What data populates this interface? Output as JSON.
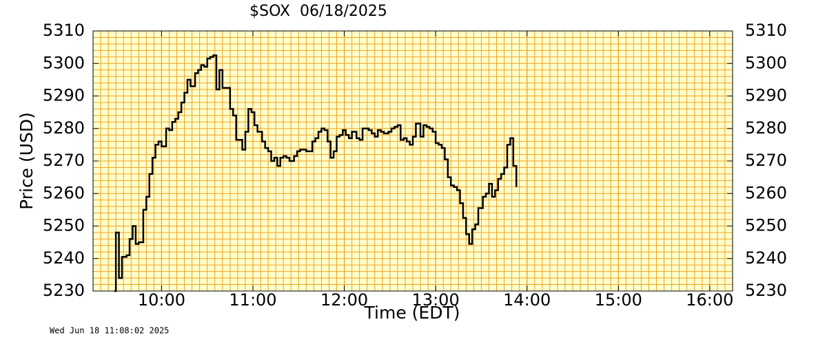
{
  "chart_data": {
    "type": "line",
    "step": "post",
    "title": "$SOX  06/18/2025",
    "x_label": "Time (EDT)",
    "y_label": "Price (USD)",
    "timestamp": "Wed Jun 18 11:08:02 2025",
    "xlim": [
      555,
      975
    ],
    "xticks": [
      {
        "value": 600,
        "label": "10:00"
      },
      {
        "value": 660,
        "label": "11:00"
      },
      {
        "value": 720,
        "label": "12:00"
      },
      {
        "value": 780,
        "label": "13:00"
      },
      {
        "value": 840,
        "label": "14:00"
      },
      {
        "value": 900,
        "label": "15:00"
      },
      {
        "value": 960,
        "label": "16:00"
      }
    ],
    "ylim": [
      5230,
      5310
    ],
    "yticks": [
      5230,
      5240,
      5250,
      5260,
      5270,
      5280,
      5290,
      5300,
      5310
    ],
    "grid": {
      "x_step": 5,
      "y_step": 2,
      "color": "#f0a020"
    },
    "background": "#ffffcc",
    "color": "#000000",
    "x": [
      569,
      570,
      572,
      574,
      577,
      579,
      581,
      583,
      585,
      588,
      590,
      592,
      594,
      596,
      598,
      600,
      603,
      605,
      607,
      609,
      611,
      613,
      615,
      617,
      619,
      622,
      624,
      626,
      628,
      630,
      632,
      634,
      636,
      638,
      640,
      643,
      645,
      647,
      649,
      651,
      653,
      655,
      657,
      659,
      661,
      663,
      666,
      668,
      670,
      672,
      674,
      676,
      678,
      680,
      682,
      684,
      687,
      689,
      691,
      693,
      695,
      697,
      699,
      701,
      703,
      705,
      707,
      709,
      711,
      713,
      715,
      717,
      719,
      721,
      723,
      725,
      728,
      730,
      732,
      734,
      736,
      738,
      740,
      742,
      744,
      746,
      749,
      751,
      753,
      755,
      757,
      759,
      761,
      763,
      765,
      767,
      770,
      772,
      774,
      776,
      778,
      780,
      782,
      784,
      786,
      788,
      790,
      792,
      794,
      796,
      798,
      800,
      802,
      804,
      806,
      808,
      811,
      813,
      815,
      817,
      819,
      821,
      823,
      825,
      827,
      829,
      831,
      833
    ],
    "values": [
      5230,
      5248,
      5234,
      5240.5,
      5241,
      5246,
      5250,
      5244.5,
      5245,
      5255,
      5259,
      5266,
      5271,
      5275,
      5276,
      5274.5,
      5280,
      5279.5,
      5282,
      5283,
      5285,
      5288,
      5291,
      5295,
      5293,
      5297,
      5298,
      5299.5,
      5299,
      5301.5,
      5302,
      5302.5,
      5292,
      5298,
      5292.5,
      5292.5,
      5286,
      5284,
      5276.5,
      5276.5,
      5273.5,
      5279,
      5286,
      5285,
      5281,
      5279,
      5276,
      5274,
      5273,
      5270,
      5271,
      5268.5,
      5271,
      5271.5,
      5271,
      5270,
      5271.5,
      5273,
      5273.5,
      5273.5,
      5273,
      5273,
      5276,
      5277,
      5279,
      5280,
      5279.5,
      5276,
      5271,
      5273,
      5277.5,
      5278,
      5279.5,
      5278,
      5277,
      5279,
      5277,
      5276.5,
      5280,
      5280,
      5279.5,
      5278.5,
      5277.5,
      5279.5,
      5279,
      5278.5,
      5279,
      5280,
      5280.5,
      5281,
      5276.5,
      5277,
      5276,
      5275,
      5277.5,
      5281.5,
      5277.5,
      5281,
      5280.5,
      5280,
      5279,
      5275.5,
      5275,
      5274,
      5270.5,
      5265,
      5262.5,
      5262,
      5261,
      5257,
      5252.5,
      5247.5,
      5244.5,
      5249,
      5250.5,
      5255.5,
      5259,
      5260,
      5263,
      5259,
      5261,
      5264.5,
      5266,
      5268,
      5275,
      5277,
      5268.5,
      5262
    ]
  }
}
